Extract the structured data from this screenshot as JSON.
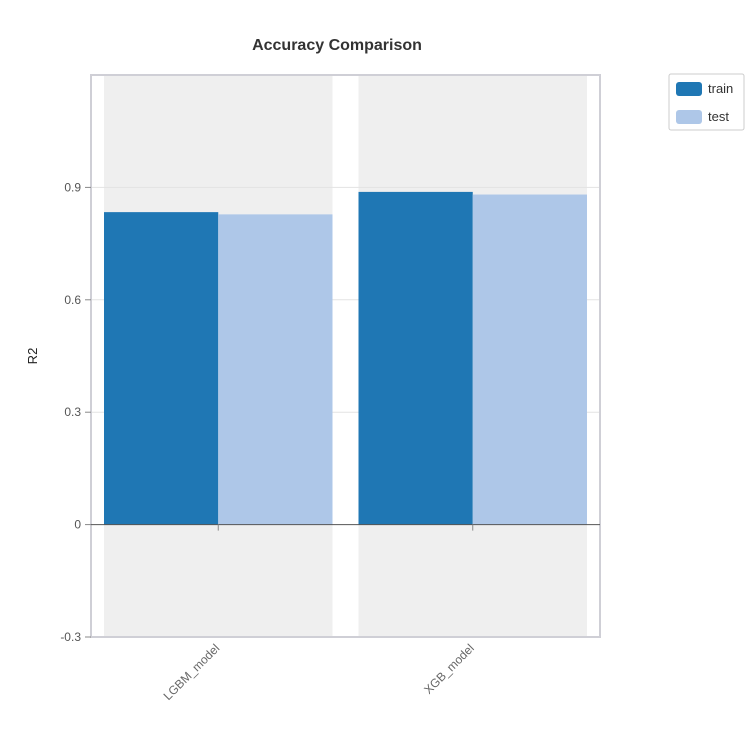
{
  "chart_data": {
    "type": "bar",
    "title": "Accuracy Comparison",
    "xlabel": "",
    "ylabel": "R2",
    "categories": [
      "LGBM_model",
      "XGB_model"
    ],
    "series": [
      {
        "name": "train",
        "values": [
          0.834,
          0.888
        ],
        "color": "#1f77b4"
      },
      {
        "name": "test",
        "values": [
          0.828,
          0.881
        ],
        "color": "#aec7e8"
      }
    ],
    "ylim": [
      -0.3,
      1.2
    ],
    "yticks": [
      -0.3,
      0,
      0.3,
      0.6,
      0.9
    ],
    "ytick_labels": [
      "-0.3",
      "0",
      "0.3",
      "0.6",
      "0.9"
    ],
    "grid": true,
    "legend_position": "top-right, outside plot",
    "category_background_color": "#efefef",
    "gridline_color": "#e3e3e3",
    "zero_line_color": "#555555"
  }
}
